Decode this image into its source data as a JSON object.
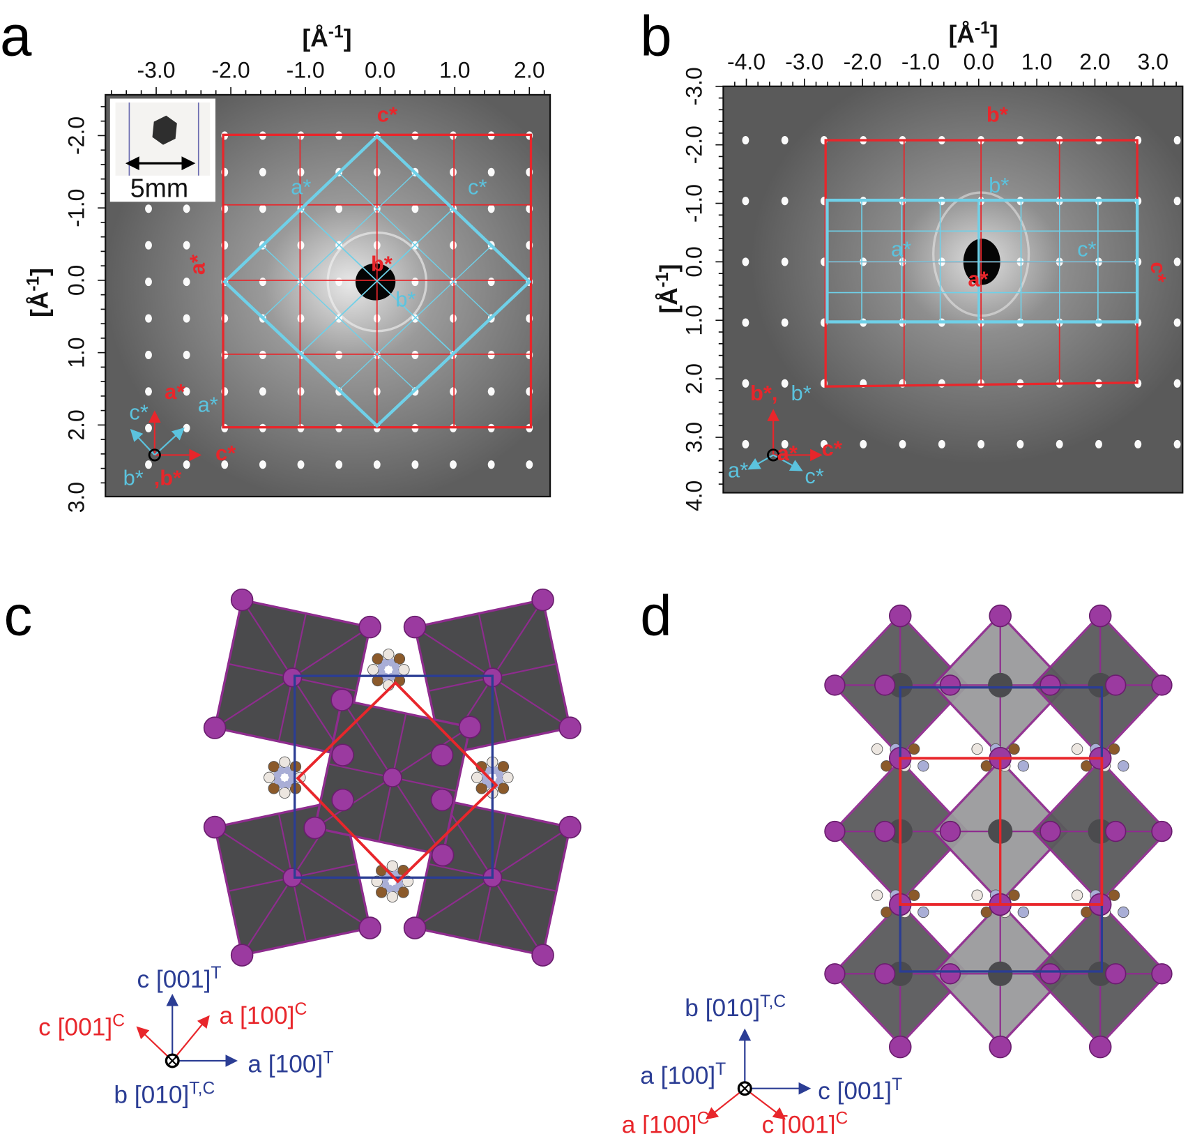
{
  "panels": {
    "a": {
      "label": "a",
      "axis_title": {
        "text": "[Å",
        "sup": "-1",
        "close": "]"
      },
      "x_ticks": [
        "-3.0",
        "-2.0",
        "-1.0",
        "0.0",
        "1.0",
        "2.0"
      ],
      "y_ticks": [
        "-2.0",
        "-1.0",
        "0.0",
        "1.0",
        "2.0",
        "3.0"
      ],
      "inset_scale": "5mm",
      "annotations": [
        {
          "text": "c*",
          "color": "#e8262b"
        },
        {
          "text": "a*",
          "color": "#e8262b"
        },
        {
          "text": "b*",
          "color": "#e8262b"
        },
        {
          "text": "a*",
          "color": "#5bc3de"
        },
        {
          "text": "c*",
          "color": "#5bc3de"
        },
        {
          "text": "b*",
          "color": "#5bc3de"
        },
        {
          "text": "a*",
          "color": "#e8262b"
        },
        {
          "text": "c*",
          "color": "#5bc3de"
        },
        {
          "text": "a*",
          "color": "#5bc3de"
        },
        {
          "text": "c*",
          "color": "#e8262b"
        },
        {
          "text": "b*",
          "color": "#5bc3de"
        },
        {
          "text": ",b*",
          "color": "#e8262b"
        }
      ]
    },
    "b": {
      "label": "b",
      "axis_title": {
        "text": "[Å",
        "sup": "-1",
        "close": "]"
      },
      "x_ticks": [
        "-4.0",
        "-3.0",
        "-2.0",
        "-1.0",
        "0.0",
        "1.0",
        "2.0",
        "3.0"
      ],
      "y_ticks": [
        "-3.0",
        "-2.0",
        "-1.0",
        "0.0",
        "1.0",
        "2.0",
        "3.0",
        "4.0"
      ],
      "annotations": [
        {
          "text": "b*",
          "color": "#e8262b"
        },
        {
          "text": "b*",
          "color": "#5bc3de"
        },
        {
          "text": "a*",
          "color": "#5bc3de"
        },
        {
          "text": "c*",
          "color": "#5bc3de"
        },
        {
          "text": "c*",
          "color": "#e8262b"
        },
        {
          "text": "a*",
          "color": "#e8262b"
        },
        {
          "text": "b*,",
          "color": "#e8262b"
        },
        {
          "text": "b*",
          "color": "#5bc3de"
        },
        {
          "text": "a*",
          "color": "#e8262b"
        },
        {
          "text": "c*",
          "color": "#e8262b"
        },
        {
          "text": "a*",
          "color": "#5bc3de"
        },
        {
          "text": "c*",
          "color": "#5bc3de"
        }
      ]
    },
    "c": {
      "label": "c",
      "axes": [
        {
          "text": "c [001]",
          "sup": "T",
          "color": "#2b3d94"
        },
        {
          "text": "c [001]",
          "sup": "C",
          "color": "#e8262b"
        },
        {
          "text": "a [100]",
          "sup": "C",
          "color": "#e8262b"
        },
        {
          "text": "a [100]",
          "sup": "T",
          "color": "#2b3d94"
        },
        {
          "text": "b [010]",
          "sup": "T,C",
          "color": "#2b3d94"
        }
      ]
    },
    "d": {
      "label": "d",
      "axes": [
        {
          "text": "b [010]",
          "sup": "T,C",
          "color": "#2b3d94"
        },
        {
          "text": "a [100]",
          "sup": "T",
          "color": "#2b3d94"
        },
        {
          "text": "c [001]",
          "sup": "T",
          "color": "#2b3d94"
        },
        {
          "text": "a [100]",
          "sup": "C",
          "color": "#e8262b"
        },
        {
          "text": "c [001]",
          "sup": "C",
          "color": "#e8262b"
        }
      ]
    }
  }
}
